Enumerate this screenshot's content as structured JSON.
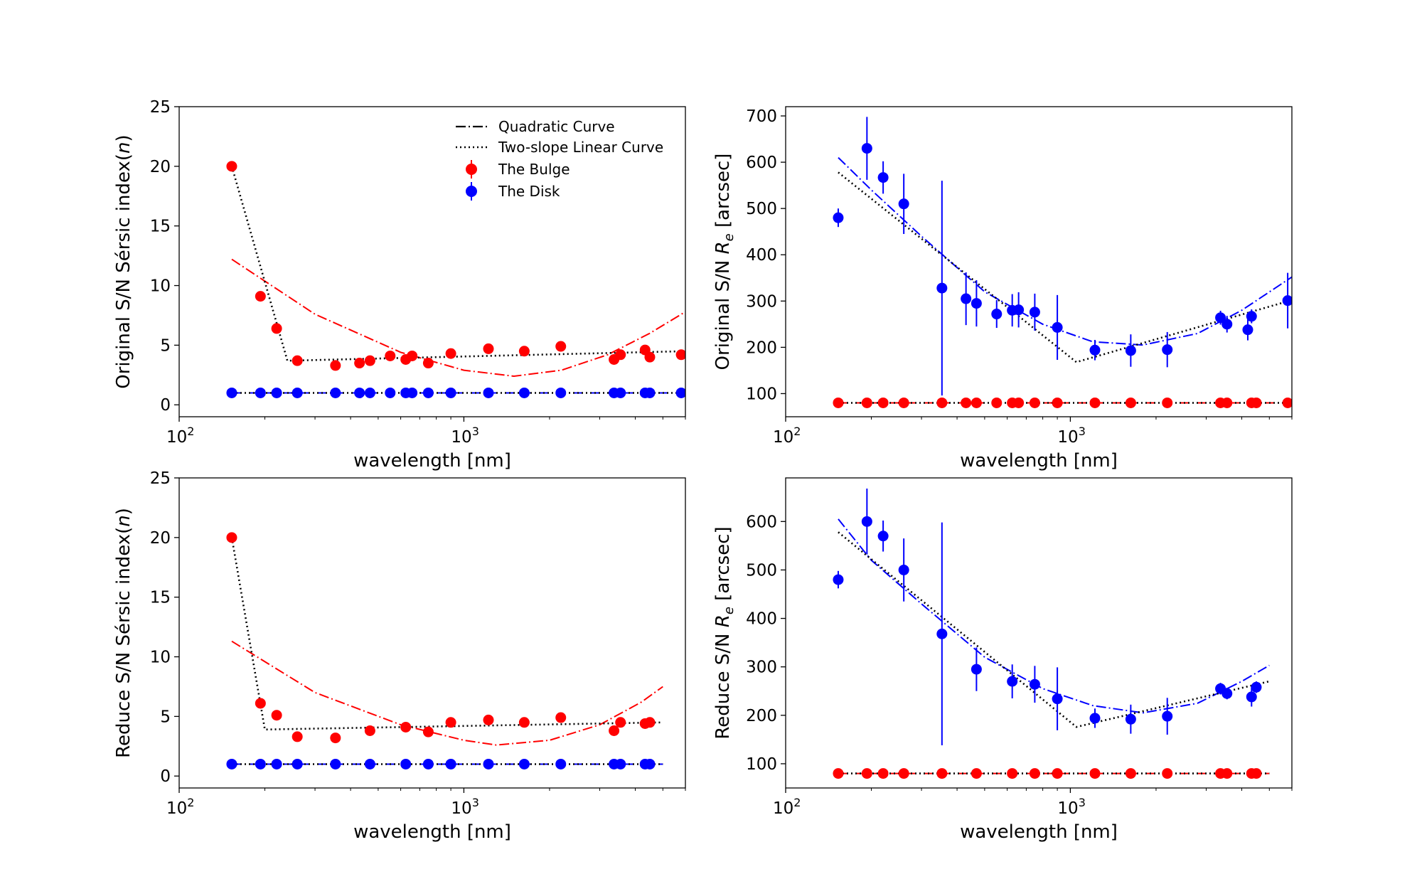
{
  "figure": {
    "series_colors": {
      "bulge": "#ff0000",
      "disk": "#0000ff",
      "fit": "#000000"
    },
    "legend": {
      "quadratic": "Quadratic Curve",
      "linear": "Two-slope Linear Curve",
      "bulge": "The Bulge",
      "disk": "The Disk"
    }
  },
  "chart_data": [
    {
      "type": "scatter",
      "panel": "top-left",
      "xlabel": "wavelength [nm]",
      "ylabel": "Original S/N Sérsic index(n)",
      "ylabel_parts": {
        "prefix": "Original S/N Sérsic index(",
        "var": "n",
        "suffix": ")"
      },
      "xscale": "log",
      "xlim": [
        100,
        6000
      ],
      "ylim": [
        -1,
        25
      ],
      "xticks": [
        {
          "value": 100,
          "base": "10",
          "exp": "2"
        },
        {
          "value": 1000,
          "base": "10",
          "exp": "3"
        }
      ],
      "yticks": [
        0,
        5,
        10,
        15,
        20,
        25
      ],
      "legend_position": "top-right",
      "series": [
        {
          "name": "The Bulge",
          "color": "#ff0000",
          "x": [
            153,
            193,
            220,
            260,
            354,
            430,
            468,
            551,
            625,
            658,
            750,
            900,
            1220,
            1630,
            2190,
            3368,
            3550,
            4330,
            4500,
            5800
          ],
          "y": [
            20.0,
            9.1,
            6.4,
            3.7,
            3.3,
            3.5,
            3.7,
            4.1,
            3.8,
            4.1,
            3.5,
            4.3,
            4.7,
            4.5,
            4.9,
            3.8,
            4.2,
            4.6,
            4.0,
            4.2
          ]
        },
        {
          "name": "The Disk",
          "color": "#0000ff",
          "x": [
            153,
            193,
            220,
            260,
            354,
            430,
            468,
            551,
            625,
            658,
            750,
            900,
            1220,
            1630,
            2190,
            3368,
            3550,
            4330,
            4500,
            5800
          ],
          "y": [
            1,
            1,
            1,
            1,
            1,
            1,
            1,
            1,
            1,
            1,
            1,
            1,
            1,
            1,
            1,
            1,
            1,
            1,
            1,
            1
          ]
        }
      ],
      "fits": [
        {
          "name": "Quadratic Curve",
          "of": "The Bulge",
          "color": "#ff0000",
          "style": "dashdot",
          "x": [
            153,
            300,
            600,
            1000,
            1500,
            2200,
            3200,
            4500,
            6000
          ],
          "y": [
            12.2,
            7.6,
            4.4,
            2.9,
            2.4,
            2.9,
            4.2,
            6.0,
            7.8
          ]
        },
        {
          "name": "Two-slope Linear Curve",
          "of": "The Bulge",
          "color": "#000000",
          "style": "dotted",
          "x": [
            153,
            240,
            6000
          ],
          "y": [
            20.0,
            3.7,
            4.5
          ]
        },
        {
          "name": "Quadratic Curve",
          "of": "The Disk",
          "color": "#0000ff",
          "style": "dashdot",
          "x": [
            153,
            6000
          ],
          "y": [
            1,
            1
          ]
        },
        {
          "name": "Two-slope Linear Curve",
          "of": "The Disk",
          "color": "#000000",
          "style": "dotted",
          "x": [
            153,
            6000
          ],
          "y": [
            1,
            1
          ]
        }
      ]
    },
    {
      "type": "scatter",
      "panel": "top-right",
      "xlabel": "wavelength [nm]",
      "ylabel": "Original S/N Re [arcsec]",
      "ylabel_parts": {
        "prefix": "Original S/N ",
        "var": "R",
        "sub": "e",
        "suffix": " [arcsec]"
      },
      "xscale": "log",
      "xlim": [
        100,
        6000
      ],
      "ylim": [
        50,
        720
      ],
      "xticks": [
        {
          "value": 100,
          "base": "10",
          "exp": "2"
        },
        {
          "value": 1000,
          "base": "10",
          "exp": "3"
        }
      ],
      "yticks": [
        100,
        200,
        300,
        400,
        500,
        600,
        700
      ],
      "series": [
        {
          "name": "The Bulge",
          "color": "#ff0000",
          "x": [
            153,
            193,
            220,
            260,
            354,
            430,
            468,
            551,
            625,
            658,
            750,
            900,
            1220,
            1630,
            2190,
            3368,
            3550,
            4330,
            4500,
            5800
          ],
          "y": [
            80,
            80,
            80,
            80,
            80,
            80,
            80,
            80,
            80,
            80,
            80,
            80,
            80,
            80,
            80,
            80,
            80,
            80,
            80,
            80
          ]
        },
        {
          "name": "The Disk",
          "color": "#0000ff",
          "x": [
            153,
            193,
            220,
            260,
            354,
            430,
            468,
            551,
            625,
            658,
            750,
            900,
            1220,
            1630,
            2190,
            3368,
            3550,
            4200,
            4330,
            5800
          ],
          "y": [
            480,
            630,
            567,
            510,
            328,
            305,
            295,
            272,
            280,
            281,
            276,
            243,
            194,
            193,
            195,
            264,
            250,
            238,
            267,
            301
          ],
          "err": [
            20,
            68,
            35,
            65,
            232,
            57,
            50,
            30,
            35,
            38,
            40,
            70,
            22,
            35,
            38,
            15,
            18,
            23,
            15,
            60
          ]
        }
      ],
      "fits": [
        {
          "name": "Quadratic Curve",
          "of": "The Disk",
          "color": "#0000ff",
          "style": "dashdot",
          "x": [
            153,
            200,
            300,
            500,
            800,
            1200,
            1800,
            2800,
            4000,
            6000
          ],
          "y": [
            610,
            540,
            440,
            320,
            250,
            212,
            205,
            230,
            280,
            352
          ]
        },
        {
          "name": "Two-slope Linear Curve",
          "of": "The Disk",
          "color": "#000000",
          "style": "dotted",
          "x": [
            153,
            1050,
            6000
          ],
          "y": [
            578,
            168,
            302
          ]
        },
        {
          "name": "Quadratic Curve",
          "of": "The Bulge",
          "color": "#ff0000",
          "style": "dashdot",
          "x": [
            153,
            6000
          ],
          "y": [
            80,
            80
          ]
        },
        {
          "name": "Two-slope Linear Curve",
          "of": "The Bulge",
          "color": "#000000",
          "style": "dotted",
          "x": [
            153,
            6000
          ],
          "y": [
            80,
            80
          ]
        }
      ]
    },
    {
      "type": "scatter",
      "panel": "bottom-left",
      "xlabel": "wavelength [nm]",
      "ylabel": "Reduce S/N Sérsic index(n)",
      "ylabel_parts": {
        "prefix": "Reduce S/N Sérsic index(",
        "var": "n",
        "suffix": ")"
      },
      "xscale": "log",
      "xlim": [
        100,
        6000
      ],
      "ylim": [
        -1,
        25
      ],
      "xticks": [
        {
          "value": 100,
          "base": "10",
          "exp": "2"
        },
        {
          "value": 1000,
          "base": "10",
          "exp": "3"
        }
      ],
      "yticks": [
        0,
        5,
        10,
        15,
        20,
        25
      ],
      "series": [
        {
          "name": "The Bulge",
          "color": "#ff0000",
          "x": [
            153,
            193,
            220,
            260,
            354,
            468,
            625,
            750,
            900,
            1220,
            1630,
            2190,
            3368,
            3550,
            4330,
            4500
          ],
          "y": [
            20.0,
            6.1,
            5.1,
            3.3,
            3.2,
            3.8,
            4.1,
            3.7,
            4.5,
            4.7,
            4.5,
            4.9,
            3.8,
            4.5,
            4.4,
            4.5
          ]
        },
        {
          "name": "The Disk",
          "color": "#0000ff",
          "x": [
            153,
            193,
            220,
            260,
            354,
            468,
            625,
            750,
            900,
            1220,
            1630,
            2190,
            3368,
            3550,
            4330,
            4500
          ],
          "y": [
            1,
            1,
            1,
            1,
            1,
            1,
            1,
            1,
            1,
            1,
            1,
            1,
            1,
            1,
            1,
            1
          ]
        }
      ],
      "fits": [
        {
          "name": "Quadratic Curve",
          "of": "The Bulge",
          "color": "#ff0000",
          "style": "dashdot",
          "x": [
            153,
            300,
            600,
            1000,
            1300,
            2000,
            3000,
            4200,
            5000
          ],
          "y": [
            11.3,
            7.0,
            4.3,
            3.0,
            2.6,
            3.0,
            4.3,
            6.2,
            7.5
          ]
        },
        {
          "name": "Two-slope Linear Curve",
          "of": "The Bulge",
          "color": "#000000",
          "style": "dotted",
          "x": [
            153,
            200,
            5000
          ],
          "y": [
            20.0,
            3.9,
            4.5
          ]
        },
        {
          "name": "Quadratic Curve",
          "of": "The Disk",
          "color": "#0000ff",
          "style": "dashdot",
          "x": [
            153,
            5000
          ],
          "y": [
            1,
            1
          ]
        },
        {
          "name": "Two-slope Linear Curve",
          "of": "The Disk",
          "color": "#000000",
          "style": "dotted",
          "x": [
            153,
            5000
          ],
          "y": [
            1,
            1
          ]
        }
      ]
    },
    {
      "type": "scatter",
      "panel": "bottom-right",
      "xlabel": "wavelength [nm]",
      "ylabel": "Reduce S/N Re [arcsec]",
      "ylabel_parts": {
        "prefix": "Reduce S/N ",
        "var": "R",
        "sub": "e",
        "suffix": " [arcsec]"
      },
      "xscale": "log",
      "xlim": [
        100,
        6000
      ],
      "ylim": [
        50,
        690
      ],
      "xticks": [
        {
          "value": 100,
          "base": "10",
          "exp": "2"
        },
        {
          "value": 1000,
          "base": "10",
          "exp": "3"
        }
      ],
      "yticks": [
        100,
        200,
        300,
        400,
        500,
        600
      ],
      "series": [
        {
          "name": "The Bulge",
          "color": "#ff0000",
          "x": [
            153,
            193,
            220,
            260,
            354,
            468,
            625,
            750,
            900,
            1220,
            1630,
            2190,
            3368,
            3550,
            4330,
            4500
          ],
          "y": [
            80,
            80,
            80,
            80,
            80,
            80,
            80,
            80,
            80,
            80,
            80,
            80,
            80,
            80,
            80,
            80
          ]
        },
        {
          "name": "The Disk",
          "color": "#0000ff",
          "x": [
            153,
            193,
            220,
            260,
            354,
            468,
            625,
            750,
            900,
            1220,
            1630,
            2190,
            3368,
            3550,
            4330,
            4500
          ],
          "y": [
            480,
            600,
            570,
            500,
            368,
            295,
            270,
            264,
            234,
            194,
            192,
            198,
            255,
            245,
            238,
            258
          ],
          "err": [
            18,
            68,
            32,
            65,
            230,
            45,
            35,
            38,
            65,
            20,
            30,
            38,
            12,
            12,
            20,
            12
          ]
        }
      ],
      "fits": [
        {
          "name": "Quadratic Curve",
          "of": "The Disk",
          "color": "#0000ff",
          "style": "dashdot",
          "x": [
            153,
            200,
            300,
            500,
            800,
            1200,
            1800,
            2800,
            4000,
            5000
          ],
          "y": [
            605,
            520,
            430,
            320,
            255,
            220,
            205,
            225,
            270,
            303
          ]
        },
        {
          "name": "Two-slope Linear Curve",
          "of": "The Disk",
          "color": "#000000",
          "style": "dotted",
          "x": [
            153,
            1050,
            5000
          ],
          "y": [
            578,
            176,
            270
          ]
        },
        {
          "name": "Quadratic Curve",
          "of": "The Bulge",
          "color": "#ff0000",
          "style": "dashdot",
          "x": [
            153,
            5000
          ],
          "y": [
            80,
            80
          ]
        },
        {
          "name": "Two-slope Linear Curve",
          "of": "The Bulge",
          "color": "#000000",
          "style": "dotted",
          "x": [
            153,
            5000
          ],
          "y": [
            80,
            80
          ]
        }
      ]
    }
  ]
}
